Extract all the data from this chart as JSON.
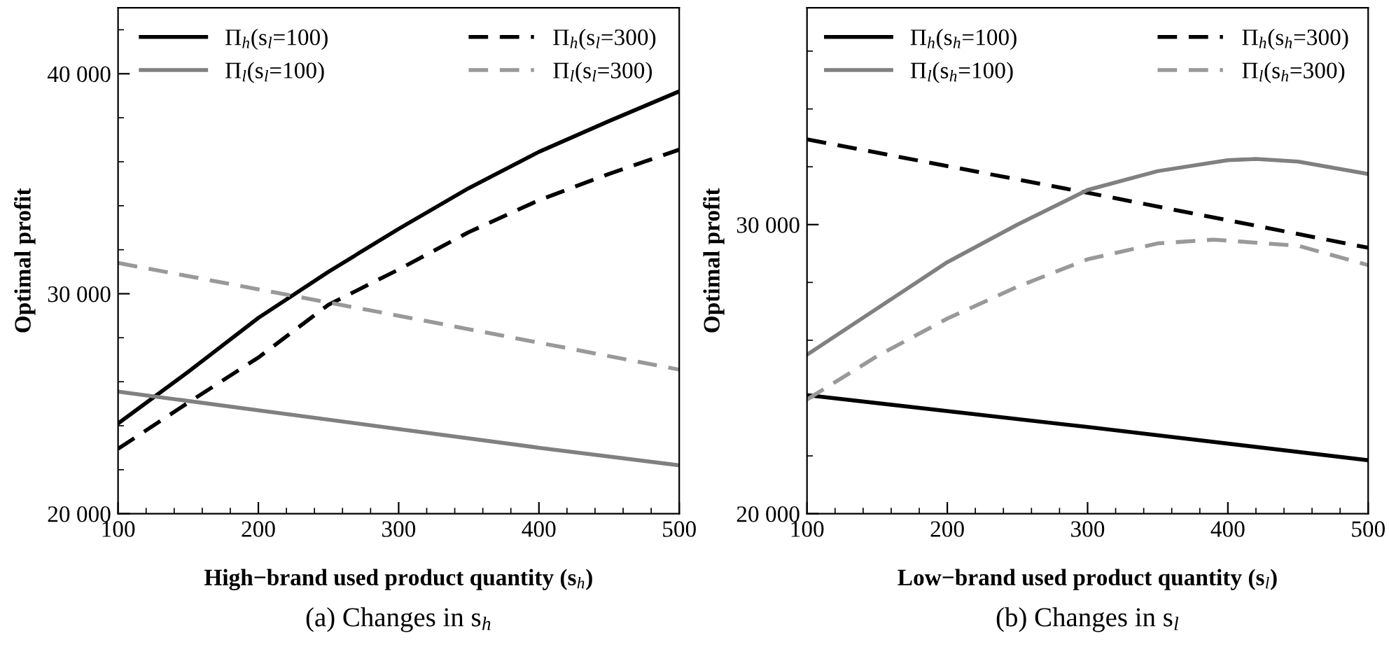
{
  "chart_data": [
    {
      "type": "line",
      "ylabel": "Optimal profit",
      "xlabel": "High−brand used product quantity (s$_{h}$)",
      "annotations": [
        "(a) Changes in s$_{h}$"
      ],
      "xlim": [
        100,
        500
      ],
      "ylim": [
        20000,
        43000
      ],
      "xticks": [
        100,
        {
          "value": 120,
          "label": null
        },
        {
          "value": 140,
          "label": null
        },
        {
          "value": 160,
          "label": null
        },
        {
          "value": 180,
          "label": null
        },
        200,
        {
          "value": 220,
          "label": null
        },
        {
          "value": 240,
          "label": null
        },
        {
          "value": 260,
          "label": null
        },
        {
          "value": 280,
          "label": null
        },
        300,
        {
          "value": 320,
          "label": null
        },
        {
          "value": 340,
          "label": null
        },
        {
          "value": 360,
          "label": null
        },
        {
          "value": 380,
          "label": null
        },
        400,
        {
          "value": 420,
          "label": null
        },
        {
          "value": 440,
          "label": null
        },
        {
          "value": 460,
          "label": null
        },
        {
          "value": 480,
          "label": null
        },
        500
      ],
      "yticks": [
        {
          "value": 20000,
          "label": "20 000"
        },
        {
          "value": 22000,
          "label": null
        },
        {
          "value": 24000,
          "label": null
        },
        {
          "value": 26000,
          "label": null
        },
        {
          "value": 28000,
          "label": null
        },
        {
          "value": 30000,
          "label": "30 000"
        },
        {
          "value": 32000,
          "label": null
        },
        {
          "value": 34000,
          "label": null
        },
        {
          "value": 36000,
          "label": null
        },
        {
          "value": 38000,
          "label": null
        },
        {
          "value": 40000,
          "label": "40 000"
        },
        {
          "value": 42000,
          "label": null
        }
      ],
      "legend": "top",
      "grid": false,
      "series": [
        {
          "name": "Π$_{h}$(s$_{l}$=100)",
          "color": "#000000",
          "line_style": "solid",
          "x": [
            100,
            150,
            200,
            250,
            300,
            350,
            400,
            450,
            500
          ],
          "values": [
            24100,
            26450,
            28900,
            31000,
            32950,
            34800,
            36450,
            37850,
            39200
          ]
        },
        {
          "name": "Π$_{h}$(s$_{l}$=300)",
          "color": "#000000",
          "line_style": "dashed",
          "x": [
            100,
            150,
            200,
            250,
            300,
            350,
            400,
            450,
            500
          ],
          "values": [
            22950,
            25050,
            27100,
            29500,
            31100,
            32800,
            34250,
            35450,
            36550
          ]
        },
        {
          "name": "Π$_{l}$(s$_{l}$=100)",
          "color": "#808080",
          "line_style": "solid",
          "x": [
            100,
            200,
            300,
            400,
            500
          ],
          "values": [
            25550,
            24700,
            23850,
            23000,
            22200
          ]
        },
        {
          "name": "Π$_{l}$(s$_{l}$=300)",
          "color": "#999999",
          "line_style": "dashed",
          "x": [
            100,
            300,
            500
          ],
          "values": [
            31400,
            29000,
            26550
          ]
        }
      ]
    },
    {
      "type": "line",
      "ylabel": "Optimal profit",
      "xlabel": "Low−brand used product quantity (s$_{l}$)",
      "annotations": [
        "(b) Changes in s$_{l}$"
      ],
      "xlim": [
        100,
        500
      ],
      "ylim": [
        20000,
        37500
      ],
      "xticks": [
        100,
        {
          "value": 120,
          "label": null
        },
        {
          "value": 140,
          "label": null
        },
        {
          "value": 160,
          "label": null
        },
        {
          "value": 180,
          "label": null
        },
        200,
        {
          "value": 220,
          "label": null
        },
        {
          "value": 240,
          "label": null
        },
        {
          "value": 260,
          "label": null
        },
        {
          "value": 280,
          "label": null
        },
        300,
        {
          "value": 320,
          "label": null
        },
        {
          "value": 340,
          "label": null
        },
        {
          "value": 360,
          "label": null
        },
        {
          "value": 380,
          "label": null
        },
        400,
        {
          "value": 420,
          "label": null
        },
        {
          "value": 440,
          "label": null
        },
        {
          "value": 460,
          "label": null
        },
        {
          "value": 480,
          "label": null
        },
        500
      ],
      "yticks": [
        {
          "value": 20000,
          "label": "20 000"
        },
        {
          "value": 22000,
          "label": null
        },
        {
          "value": 24000,
          "label": null
        },
        {
          "value": 26000,
          "label": null
        },
        {
          "value": 28000,
          "label": null
        },
        {
          "value": 30000,
          "label": "30 000"
        },
        {
          "value": 32000,
          "label": null
        },
        {
          "value": 34000,
          "label": null
        },
        {
          "value": 36000,
          "label": null
        }
      ],
      "legend": "top",
      "grid": false,
      "series": [
        {
          "name": "Π$_{h}$(s$_{h}$=100)",
          "color": "#000000",
          "line_style": "solid",
          "x": [
            100,
            300,
            500
          ],
          "values": [
            24100,
            23000,
            21850
          ]
        },
        {
          "name": "Π$_{h}$(s$_{h}$=300)",
          "color": "#000000",
          "line_style": "dashed",
          "x": [
            100,
            300,
            500
          ],
          "values": [
            32950,
            31100,
            29200
          ]
        },
        {
          "name": "Π$_{l}$(s$_{h}$=100)",
          "color": "#808080",
          "line_style": "solid",
          "x": [
            100,
            150,
            200,
            250,
            300,
            350,
            400,
            420,
            450,
            500
          ],
          "values": [
            25500,
            27100,
            28700,
            30000,
            31200,
            31850,
            32230,
            32270,
            32180,
            31750
          ]
        },
        {
          "name": "Π$_{l}$(s$_{h}$=300)",
          "color": "#999999",
          "line_style": "dashed",
          "x": [
            100,
            150,
            200,
            250,
            300,
            350,
            390,
            450,
            500
          ],
          "values": [
            23950,
            25450,
            26750,
            27850,
            28800,
            29350,
            29480,
            29270,
            28600
          ]
        }
      ]
    }
  ]
}
